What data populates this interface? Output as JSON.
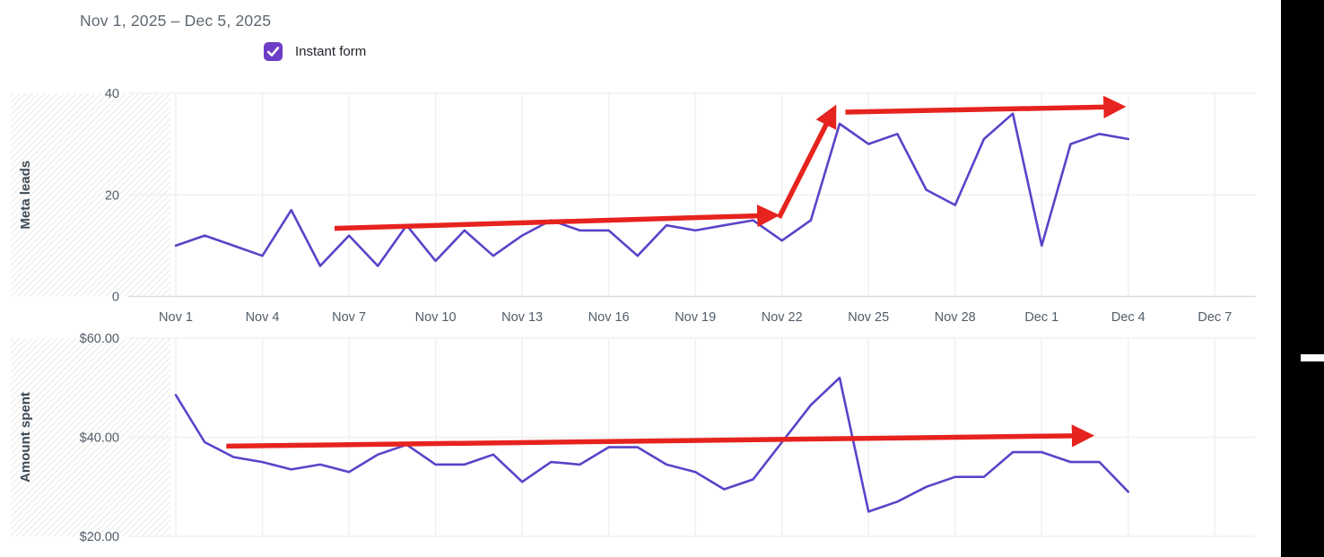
{
  "header": {
    "date_range": "Nov 1, 2025 – Dec 5, 2025"
  },
  "legend": {
    "label": "Instant form",
    "checked": true
  },
  "colors": {
    "series_line": "#5a43c9",
    "annotation_arrow": "#e6231e",
    "checkbox_fill": "#6c3dc6",
    "check_mark": "#ffffff",
    "title_text": "#5d6873",
    "tick_text": "#515c68",
    "axis_title_text": "#3d4a56",
    "legend_text": "#1e2126",
    "gridline": "#f0f0f0",
    "axis_line": "#dcdcdc",
    "hatch_line": "#ededed",
    "right_panel": "#000000",
    "panel_dash": "#ffffff"
  },
  "x_axis": {
    "tick_labels": [
      "Nov 1",
      "Nov 4",
      "Nov 7",
      "Nov 10",
      "Nov 13",
      "Nov 16",
      "Nov 19",
      "Nov 22",
      "Nov 25",
      "Nov 28",
      "Dec 1",
      "Dec 4",
      "Dec 7"
    ],
    "tick_day_indices": [
      0,
      3,
      6,
      9,
      12,
      15,
      18,
      21,
      24,
      27,
      30,
      33,
      36
    ]
  },
  "chart_data": [
    {
      "type": "line",
      "ylabel": "Meta leads",
      "series_name": "Instant form",
      "ylim": [
        0,
        40
      ],
      "grid": true,
      "legend_position": "top",
      "yticks": [
        {
          "value": 40,
          "label": "40"
        },
        {
          "value": 20,
          "label": "20"
        },
        {
          "value": 0,
          "label": "0"
        }
      ],
      "x": [
        "Nov 1",
        "Nov 2",
        "Nov 3",
        "Nov 4",
        "Nov 5",
        "Nov 6",
        "Nov 7",
        "Nov 8",
        "Nov 9",
        "Nov 10",
        "Nov 11",
        "Nov 12",
        "Nov 13",
        "Nov 14",
        "Nov 15",
        "Nov 16",
        "Nov 17",
        "Nov 18",
        "Nov 19",
        "Nov 20",
        "Nov 21",
        "Nov 22",
        "Nov 23",
        "Nov 24",
        "Nov 25",
        "Nov 26",
        "Nov 27",
        "Nov 28",
        "Nov 29",
        "Nov 30",
        "Dec 1",
        "Dec 2",
        "Dec 3",
        "Dec 4"
      ],
      "values": [
        10,
        12,
        10,
        8,
        17,
        6,
        12,
        6,
        14,
        7,
        13,
        8,
        12,
        15,
        13,
        13,
        8,
        14,
        13,
        14,
        15,
        11,
        15,
        34,
        30,
        32,
        21,
        18,
        31,
        36,
        10,
        30,
        32,
        31
      ],
      "annotations": [
        {
          "name": "trend-arrow-flat-early",
          "from_day": 5.5,
          "from_value": 13.4,
          "to_day": 20.3,
          "to_value": 15.9
        },
        {
          "name": "trend-arrow-jump-up",
          "from_day": 20.9,
          "from_value": 15.5,
          "to_day": 22.6,
          "to_value": 34.6
        },
        {
          "name": "trend-arrow-flat-late",
          "from_day": 23.2,
          "from_value": 36.3,
          "to_day": 32.3,
          "to_value": 37.3
        }
      ]
    },
    {
      "type": "line",
      "ylabel": "Amount spent",
      "series_name": "Instant form",
      "ylim": [
        20,
        60
      ],
      "grid": true,
      "yticks": [
        {
          "value": 60,
          "label": "$60.00"
        },
        {
          "value": 40,
          "label": "$40.00"
        },
        {
          "value": 20,
          "label": "$20.00"
        }
      ],
      "x": [
        "Nov 1",
        "Nov 2",
        "Nov 3",
        "Nov 4",
        "Nov 5",
        "Nov 6",
        "Nov 7",
        "Nov 8",
        "Nov 9",
        "Nov 10",
        "Nov 11",
        "Nov 12",
        "Nov 13",
        "Nov 14",
        "Nov 15",
        "Nov 16",
        "Nov 17",
        "Nov 18",
        "Nov 19",
        "Nov 20",
        "Nov 21",
        "Nov 22",
        "Nov 23",
        "Nov 24",
        "Nov 25",
        "Nov 26",
        "Nov 27",
        "Nov 28",
        "Nov 29",
        "Nov 30",
        "Dec 1",
        "Dec 2",
        "Dec 3",
        "Dec 4"
      ],
      "values": [
        48.5,
        39,
        36,
        35,
        33.5,
        34.5,
        33,
        36.5,
        38.5,
        34.5,
        34.5,
        36.5,
        31,
        35,
        34.5,
        38,
        38,
        34.5,
        33,
        29.5,
        31.5,
        39,
        46.5,
        52,
        25,
        27,
        30,
        32,
        32,
        37,
        37,
        35,
        35,
        29
      ],
      "annotations": [
        {
          "name": "trend-arrow-flat",
          "from_day": 1.75,
          "from_value": 38.2,
          "to_day": 31.2,
          "to_value": 40.3
        }
      ]
    }
  ]
}
